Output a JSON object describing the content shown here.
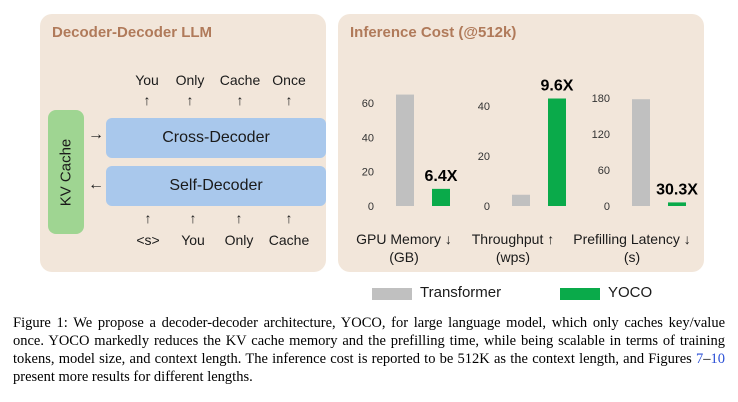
{
  "left_panel": {
    "title": "Decoder-Decoder LLM",
    "kv_cache": "KV Cache",
    "cross_decoder": "Cross-Decoder",
    "self_decoder": "Self-Decoder",
    "output_tokens": [
      "You",
      "Only",
      "Cache",
      "Once"
    ],
    "input_tokens": [
      "<s>",
      "You",
      "Only",
      "Cache"
    ],
    "arrow_left": "→",
    "arrow_right": "←",
    "arrow_up": "↑"
  },
  "right_panel": {
    "title": "Inference Cost (@512k)"
  },
  "chart_data": [
    {
      "type": "bar",
      "categories": [
        "Transformer",
        "YOCO"
      ],
      "values": [
        65,
        10
      ],
      "yticks": [
        "0",
        "20",
        "40",
        "60"
      ],
      "ylim": [
        0,
        70
      ],
      "annotation": "6.4X",
      "label_line1": "GPU Memory ↓",
      "label_line2": "(GB)"
    },
    {
      "type": "bar",
      "categories": [
        "Transformer",
        "YOCO"
      ],
      "values": [
        4.5,
        43
      ],
      "yticks": [
        "0",
        "20",
        "40"
      ],
      "ylim": [
        0,
        48
      ],
      "annotation": "9.6X",
      "label_line1": "Throughput ↑",
      "label_line2": "(wps)"
    },
    {
      "type": "bar",
      "categories": [
        "Transformer",
        "YOCO"
      ],
      "values": [
        178,
        6
      ],
      "yticks": [
        "0",
        "60",
        "120",
        "180"
      ],
      "ylim": [
        0,
        200
      ],
      "annotation": "30.3X",
      "label_line1": "Prefilling Latency ↓",
      "label_line2": "(s)"
    }
  ],
  "legend": {
    "items": [
      {
        "label": "Transformer",
        "color": "#c0c0c0"
      },
      {
        "label": "YOCO",
        "color": "#0aaa4a"
      }
    ]
  },
  "caption": {
    "part1": "Figure 1: We propose a decoder-decoder architecture, YOCO, for large language model, which only caches key/value once. YOCO markedly reduces the KV cache memory and the prefilling time, while being scalable in terms of training tokens, model size, and context length. The inference cost is reported to be 512K as the context length, and Figures ",
    "ref1": "7",
    "dash": "–",
    "ref2": "10",
    "part2": " present more results for different lengths."
  },
  "colors": {
    "panel_bg": "#f2e6da",
    "title": "#b07a5a",
    "decoder": "#a9c8ec",
    "kv_cache": "#9fd592",
    "transformer_bar": "#c0c0c0",
    "yoco_bar": "#0aaa4a"
  }
}
